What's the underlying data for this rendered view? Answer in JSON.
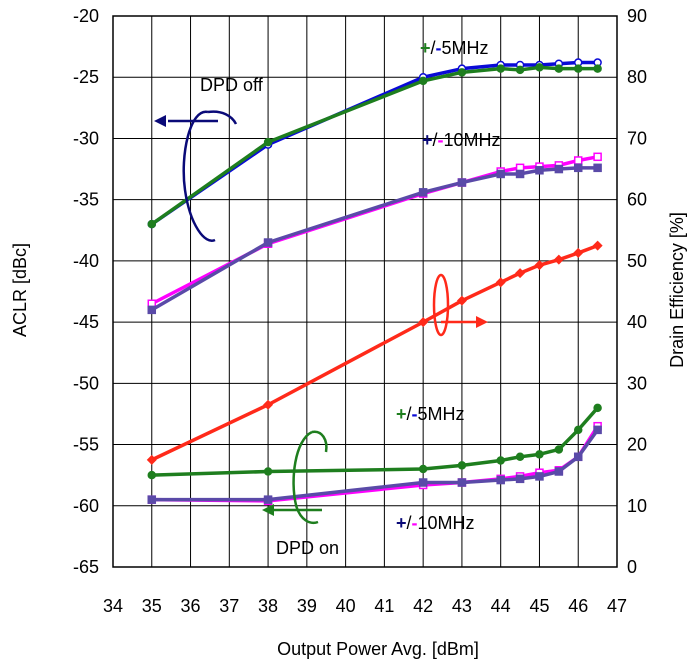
{
  "chart_data": {
    "type": "line",
    "xlabel": "Output Power Avg. [dBm]",
    "ylabel": "ACLR [dBc]",
    "y2label": "Drain Efficiency [%]",
    "xlim": [
      34,
      47
    ],
    "ylim": [
      -65,
      -20
    ],
    "y2lim": [
      0,
      90
    ],
    "x_ticks": [
      "34",
      "35",
      "36",
      "37",
      "38",
      "39",
      "40",
      "41",
      "42",
      "43",
      "44",
      "45",
      "46",
      "47"
    ],
    "y_ticks": [
      "-20",
      "-25",
      "-30",
      "-35",
      "-40",
      "-45",
      "-50",
      "-55",
      "-60",
      "-65"
    ],
    "y2_ticks": [
      "90",
      "80",
      "70",
      "60",
      "50",
      "40",
      "30",
      "20",
      "10",
      "0"
    ],
    "grid": true,
    "annotations": {
      "dpd_off": "DPD off",
      "dpd_on": "DPD on",
      "plus": "+",
      "slash": "/",
      "minus": "-",
      "mhz5": "5MHz",
      "mhz10": "10MHz"
    },
    "colors": {
      "blue": "#0a0ad6",
      "green": "#1e7e1e",
      "magenta": "#ff00ff",
      "purple": "#5a4aa8",
      "red": "#ff2a1a",
      "navy": "#0a0a78"
    },
    "series": [
      {
        "axis": "left",
        "color": "#0a0ad6",
        "marker": "circle-open",
        "x": [
          35,
          38,
          42,
          43,
          44,
          44.5,
          45,
          45.5,
          46,
          46.5
        ],
        "y": [
          -37,
          -30.5,
          -25,
          -24.3,
          -24,
          -24,
          -24,
          -23.9,
          -23.8,
          -23.8
        ]
      },
      {
        "axis": "left",
        "color": "#1e7e1e",
        "marker": "circle",
        "x": [
          35,
          38,
          42,
          43,
          44,
          44.5,
          45,
          45.5,
          46,
          46.5
        ],
        "y": [
          -37,
          -30.3,
          -25.3,
          -24.6,
          -24.3,
          -24.4,
          -24.2,
          -24.3,
          -24.3,
          -24.3
        ]
      },
      {
        "axis": "left",
        "color": "#ff00ff",
        "marker": "square-open",
        "x": [
          35,
          38,
          42,
          43,
          44,
          44.5,
          45,
          45.5,
          46,
          46.5
        ],
        "y": [
          -43.5,
          -38.6,
          -34.5,
          -33.6,
          -32.7,
          -32.4,
          -32.3,
          -32.2,
          -31.8,
          -31.5
        ]
      },
      {
        "axis": "left",
        "color": "#5a4aa8",
        "marker": "square",
        "x": [
          35,
          38,
          42,
          43,
          44,
          44.5,
          45,
          45.5,
          46,
          46.5
        ],
        "y": [
          -44,
          -38.5,
          -34.4,
          -33.6,
          -32.9,
          -32.9,
          -32.6,
          -32.5,
          -32.4,
          -32.4
        ]
      },
      {
        "axis": "right",
        "color": "#ff2a1a",
        "marker": "diamond",
        "x": [
          35,
          38,
          42,
          43,
          44,
          44.5,
          45,
          45.5,
          46,
          46.5
        ],
        "y": [
          17.5,
          26.5,
          40,
          43.5,
          46.5,
          48,
          49.3,
          50.2,
          51.3,
          52.5
        ]
      },
      {
        "axis": "left",
        "color": "#1e7e1e",
        "marker": "circle",
        "x": [
          35,
          38,
          42,
          43,
          44,
          44.5,
          45,
          45.5,
          46,
          46.5
        ],
        "y": [
          -57.5,
          -57.2,
          -57,
          -56.7,
          -56.3,
          -56,
          -55.8,
          -55.4,
          -53.8,
          -52
        ]
      },
      {
        "axis": "left",
        "color": "#ff00ff",
        "marker": "square-open",
        "x": [
          35,
          38,
          42,
          43,
          44,
          44.5,
          45,
          45.5,
          46,
          46.5
        ],
        "y": [
          -59.5,
          -59.6,
          -58.3,
          -58.1,
          -57.8,
          -57.6,
          -57.3,
          -57.1,
          -56,
          -53.5
        ]
      },
      {
        "axis": "left",
        "color": "#5a4aa8",
        "marker": "square",
        "x": [
          35,
          38,
          42,
          43,
          44,
          44.5,
          45,
          45.5,
          46,
          46.5
        ],
        "y": [
          -59.5,
          -59.5,
          -58.1,
          -58.1,
          -57.9,
          -57.8,
          -57.6,
          -57.2,
          -56,
          -53.8
        ]
      }
    ]
  }
}
